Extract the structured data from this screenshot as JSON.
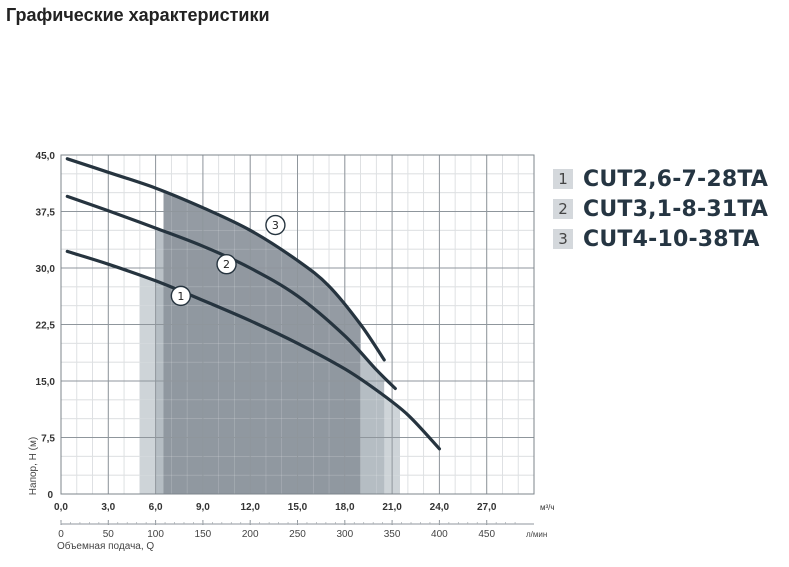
{
  "title": "Графические характеристики",
  "chart_data": {
    "type": "line",
    "ylabel": "Напор, H (м)",
    "xlabel": "Объемная подача, Q",
    "x_unit": "м³/ч",
    "x2_unit": "л/мин",
    "xlim": [
      0,
      30
    ],
    "ylim": [
      0,
      45
    ],
    "x_ticks": [
      "0,0",
      "3,0",
      "6,0",
      "9,0",
      "12,0",
      "15,0",
      "18,0",
      "21,0",
      "24,0",
      "27,0"
    ],
    "x2_ticks": [
      "0",
      "50",
      "100",
      "150",
      "200",
      "250",
      "300",
      "350",
      "400",
      "450"
    ],
    "y_ticks": [
      "Напор 0",
      "7,5",
      "15,0",
      "22,5",
      "30,0",
      "37,5",
      "45,0"
    ],
    "series": [
      {
        "name": "CUT2,6-7-28TA",
        "marker": "1",
        "x": [
          0.4,
          3,
          6,
          9,
          12,
          15,
          18,
          20,
          22,
          24.0
        ],
        "y": [
          32.2,
          30.5,
          28.3,
          25.7,
          23.0,
          20.0,
          16.6,
          13.8,
          10.5,
          6.0
        ],
        "range": [
          5.0,
          21.5
        ]
      },
      {
        "name": "CUT3,1-8-31TA",
        "marker": "2",
        "x": [
          0.4,
          3,
          6,
          9,
          12,
          15,
          18,
          20,
          21.2
        ],
        "y": [
          39.5,
          37.6,
          35.3,
          32.9,
          30.0,
          26.3,
          21.0,
          16.5,
          14.0
        ],
        "range": [
          6.0,
          20.5
        ]
      },
      {
        "name": "CUT4-10-38TA",
        "marker": "3",
        "x": [
          0.4,
          3,
          6,
          9,
          12,
          15,
          17,
          19,
          20.5
        ],
        "y": [
          44.5,
          42.7,
          40.6,
          38.0,
          35.0,
          31.0,
          27.6,
          22.5,
          17.8
        ],
        "range": [
          6.5,
          19.0
        ]
      }
    ],
    "legend_position": "right",
    "grid": true
  }
}
